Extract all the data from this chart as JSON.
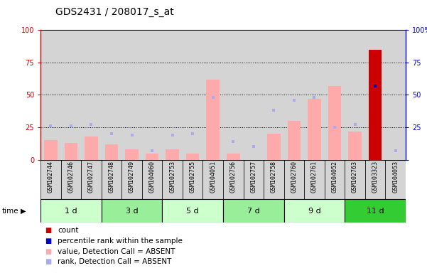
{
  "title": "GDS2431 / 208017_s_at",
  "samples": [
    "GSM102744",
    "GSM102746",
    "GSM102747",
    "GSM102748",
    "GSM102749",
    "GSM104060",
    "GSM102753",
    "GSM102755",
    "GSM104051",
    "GSM102756",
    "GSM102757",
    "GSM102758",
    "GSM102760",
    "GSM102761",
    "GSM104052",
    "GSM102763",
    "GSM103323",
    "GSM104053"
  ],
  "time_groups": [
    {
      "label": "1 d",
      "start": 0,
      "end": 3,
      "color": "#ccffcc"
    },
    {
      "label": "3 d",
      "start": 3,
      "end": 6,
      "color": "#99ee99"
    },
    {
      "label": "5 d",
      "start": 6,
      "end": 9,
      "color": "#ccffcc"
    },
    {
      "label": "7 d",
      "start": 9,
      "end": 12,
      "color": "#99ee99"
    },
    {
      "label": "9 d",
      "start": 12,
      "end": 15,
      "color": "#ccffcc"
    },
    {
      "label": "11 d",
      "start": 15,
      "end": 18,
      "color": "#33cc33"
    }
  ],
  "pink_bars": [
    15,
    13,
    18,
    12,
    8,
    5,
    8,
    5,
    62,
    5,
    0,
    20,
    30,
    47,
    57,
    22,
    0,
    0
  ],
  "blue_squares": [
    26,
    26,
    27,
    20,
    19,
    7,
    19,
    20,
    48,
    14,
    10,
    38,
    46,
    48,
    25,
    27,
    57,
    7
  ],
  "red_bar_index": 16,
  "red_bar_value": 85,
  "blue_square_on_red_value": 57,
  "ylim": [
    0,
    100
  ],
  "yticks": [
    0,
    25,
    50,
    75,
    100
  ],
  "pink_color": "#ffaaaa",
  "blue_color": "#aaaaee",
  "red_color": "#cc0000",
  "dark_blue_color": "#0000cc",
  "bg_color": "#d4d4d4",
  "left_axis_color": "#cc0000",
  "right_axis_color": "#0000cc",
  "title_fontsize": 10,
  "tick_fontsize": 7,
  "label_fontsize": 6,
  "legend_fontsize": 7.5
}
